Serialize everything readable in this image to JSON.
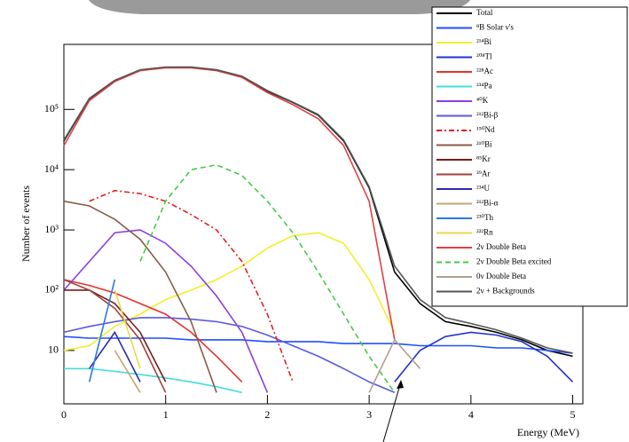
{
  "chart_data": {
    "type": "line",
    "log_y": true,
    "xlabel": "Energy (MeV)",
    "ylabel": "Number of events",
    "xlim": [
      0,
      5.1
    ],
    "xticks": [
      0,
      1,
      2,
      3,
      4,
      5
    ],
    "ylim": [
      1.3,
      1200000
    ],
    "yticks": [
      10,
      {
        "value": 100,
        "label": "10²"
      },
      {
        "value": 1000,
        "label": "10³"
      },
      {
        "value": 10000,
        "label": "10⁴"
      },
      {
        "value": 100000,
        "label": "10⁵"
      }
    ],
    "x": [
      0,
      0.25,
      0.5,
      0.75,
      1,
      1.25,
      1.5,
      1.75,
      2,
      2.25,
      2.5,
      2.75,
      3,
      3.25,
      3.5,
      3.75,
      4,
      4.25,
      4.5,
      4.75,
      5
    ],
    "series": [
      {
        "name": "Total",
        "color": "#000000",
        "values": [
          30000,
          150000,
          300000,
          450000,
          500000,
          500000,
          450000,
          350000,
          200000,
          130000,
          80000,
          30000,
          5000,
          200,
          60,
          30,
          25,
          20,
          15,
          10,
          8
        ]
      },
      {
        "name": "⁸B Solar ν's",
        "color": "#1f4fff",
        "values": [
          17,
          16,
          16,
          16,
          16,
          15,
          15,
          15,
          14,
          14,
          14,
          13,
          13,
          13,
          12,
          12,
          12,
          11,
          11,
          10,
          9
        ]
      },
      {
        "name": "²¹⁴Bi",
        "color": "#f2ee2e",
        "values": [
          10,
          12,
          25,
          40,
          70,
          100,
          150,
          250,
          500,
          800,
          900,
          600,
          150,
          20,
          null,
          null,
          null,
          null,
          null,
          null,
          null
        ]
      },
      {
        "name": "²⁰⁸Tl",
        "color": "#2233cc",
        "values": [
          null,
          null,
          null,
          null,
          null,
          null,
          null,
          null,
          null,
          null,
          null,
          null,
          null,
          3,
          10,
          17,
          20,
          18,
          14,
          8,
          3
        ]
      },
      {
        "name": "²²⁸Ac",
        "color": "#e8302a",
        "values": [
          150,
          120,
          90,
          60,
          40,
          20,
          8,
          3,
          null,
          null,
          null,
          null,
          null,
          null,
          null,
          null,
          null,
          null,
          null,
          null,
          null
        ]
      },
      {
        "name": "²³⁴Pa",
        "color": "#44dddd",
        "values": [
          5,
          5,
          4.5,
          4,
          3.5,
          3,
          2.5,
          2,
          null,
          null,
          null,
          null,
          null,
          null,
          null,
          null,
          null,
          null,
          null,
          null,
          null
        ]
      },
      {
        "name": "⁴⁰K",
        "color": "#8a3fe0",
        "values": [
          100,
          300,
          900,
          1000,
          600,
          250,
          80,
          20,
          2,
          null,
          null,
          null,
          null,
          null,
          null,
          null,
          null,
          null,
          null,
          null,
          null
        ]
      },
      {
        "name": "²¹²Bi-β",
        "color": "#5a5ae0",
        "values": [
          20,
          25,
          30,
          35,
          35,
          33,
          30,
          25,
          18,
          12,
          8,
          5,
          3,
          2,
          null,
          null,
          null,
          null,
          null,
          null,
          null
        ]
      },
      {
        "name": "¹⁵⁰Nd",
        "color": "#e02020",
        "dash": "6,3,2,3",
        "values": [
          null,
          3000,
          4500,
          4000,
          3000,
          1800,
          1000,
          300,
          40,
          3,
          null,
          null,
          null,
          null,
          null,
          null,
          null,
          null,
          null,
          null,
          null
        ]
      },
      {
        "name": "²¹⁰Bi",
        "color": "#8b5a4a",
        "values": [
          3000,
          2500,
          1500,
          700,
          200,
          30,
          2,
          null,
          null,
          null,
          null,
          null,
          null,
          null,
          null,
          null,
          null,
          null,
          null,
          null,
          null
        ]
      },
      {
        "name": "⁸⁵Kr",
        "color": "#7a1a1a",
        "values": [
          100,
          100,
          60,
          20,
          3,
          null,
          null,
          null,
          null,
          null,
          null,
          null,
          null,
          null,
          null,
          null,
          null,
          null,
          null,
          null,
          null
        ]
      },
      {
        "name": "³⁹Ar",
        "color": "#a0403a",
        "values": [
          150,
          100,
          50,
          15,
          2,
          null,
          null,
          null,
          null,
          null,
          null,
          null,
          null,
          null,
          null,
          null,
          null,
          null,
          null,
          null,
          null
        ]
      },
      {
        "name": "²³⁴U",
        "color": "#2a2ab0",
        "values": [
          null,
          5,
          20,
          3,
          null,
          null,
          null,
          null,
          null,
          null,
          null,
          null,
          null,
          null,
          null,
          null,
          null,
          null,
          null,
          null,
          null
        ]
      },
      {
        "name": "²¹²Bi-α",
        "color": "#c9a570",
        "values": [
          null,
          null,
          10,
          2,
          null,
          null,
          null,
          null,
          null,
          null,
          null,
          null,
          null,
          null,
          null,
          null,
          null,
          null,
          null,
          null,
          null
        ]
      },
      {
        "name": "²³⁰Th",
        "color": "#2a7ae0",
        "values": [
          null,
          3,
          150,
          null,
          null,
          null,
          null,
          null,
          null,
          null,
          null,
          null,
          null,
          null,
          null,
          null,
          null,
          null,
          null,
          null,
          null
        ]
      },
      {
        "name": "²²²Rn",
        "color": "#e8d850",
        "values": [
          null,
          null,
          100,
          5,
          null,
          null,
          null,
          null,
          null,
          null,
          null,
          null,
          null,
          null,
          null,
          null,
          null,
          null,
          null,
          null,
          null
        ]
      },
      {
        "name": "2ν Double Beta",
        "color": "#e04040",
        "values": [
          25000,
          140000,
          290000,
          440000,
          490000,
          490000,
          440000,
          340000,
          190000,
          120000,
          70000,
          25000,
          3000,
          15,
          null,
          null,
          null,
          null,
          null,
          null,
          null
        ]
      },
      {
        "name": "2ν Double Beta excited",
        "color": "#44cc44",
        "dash": "6,4",
        "values": [
          null,
          null,
          null,
          300,
          3000,
          10000,
          12000,
          8000,
          3000,
          900,
          200,
          40,
          8,
          2,
          null,
          null,
          null,
          null,
          null,
          null,
          null
        ]
      },
      {
        "name": "0ν Double Beta",
        "color": "#b0a090",
        "values": [
          null,
          null,
          null,
          null,
          null,
          null,
          null,
          null,
          null,
          null,
          null,
          null,
          2,
          15,
          5,
          null,
          null,
          null,
          null,
          null,
          null
        ]
      },
      {
        "name": "2ν + Backgrounds",
        "color": "#555555",
        "values": [
          31000,
          152000,
          305000,
          455000,
          505000,
          505000,
          455000,
          355000,
          205000,
          132000,
          82000,
          31000,
          5200,
          250,
          70,
          35,
          28,
          22,
          16,
          11,
          9
        ]
      }
    ]
  }
}
